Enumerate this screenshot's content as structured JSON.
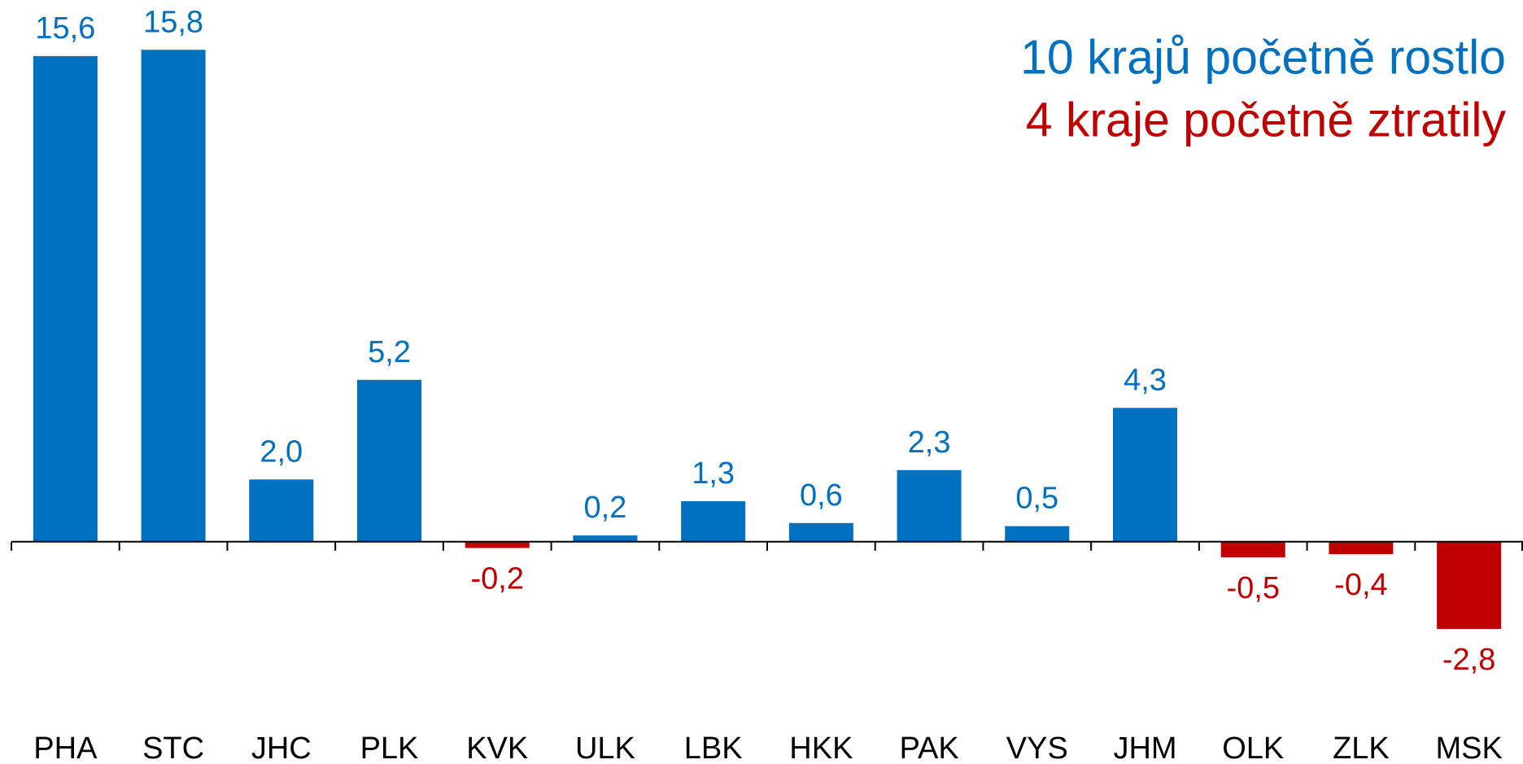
{
  "chart_data": {
    "type": "bar",
    "categories": [
      "PHA",
      "STC",
      "JHC",
      "PLK",
      "KVK",
      "ULK",
      "LBK",
      "HKK",
      "PAK",
      "VYS",
      "JHM",
      "OLK",
      "ZLK",
      "MSK"
    ],
    "values": [
      15.6,
      15.8,
      2.0,
      5.2,
      -0.2,
      0.2,
      1.3,
      0.6,
      2.3,
      0.5,
      4.3,
      -0.5,
      -0.4,
      -2.8
    ],
    "value_labels": [
      "15,6",
      "15,8",
      "2,0",
      "5,2",
      "-0,2",
      "0,2",
      "1,3",
      "0,6",
      "2,3",
      "0,5",
      "4,3",
      "-0,5",
      "-0,4",
      "-2,8"
    ],
    "positive_color": "#0070c0",
    "negative_color": "#c00000",
    "ylim": [
      -4.5,
      17.4
    ],
    "annotations": [
      {
        "text": "10 krajů početně rostlo",
        "color": "#0070c0"
      },
      {
        "text": "4 kraje početně ztratily",
        "color": "#c00000"
      }
    ]
  }
}
